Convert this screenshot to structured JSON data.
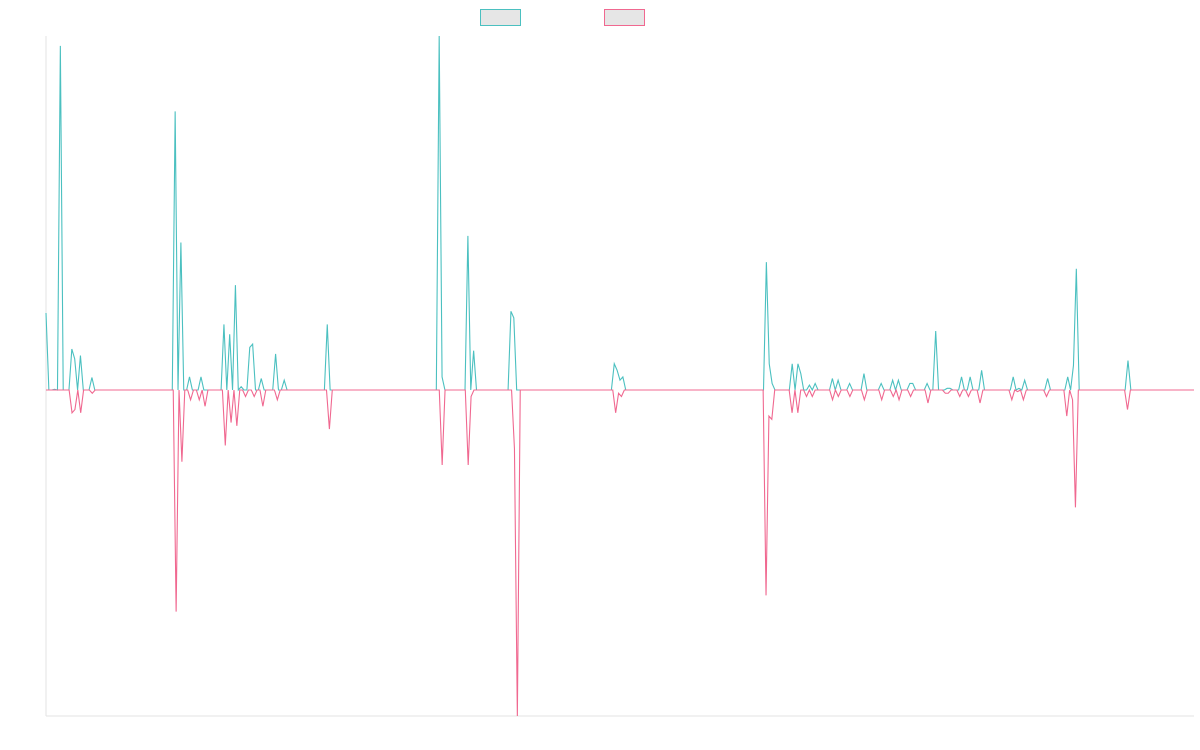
{
  "chart_data": {
    "type": "line",
    "title": "",
    "xlabel": "",
    "ylabel": "",
    "ylim": [
      -1.0,
      1.08
    ],
    "xlim": [
      0,
      200
    ],
    "grid": false,
    "legend_position": "top-center",
    "series": [
      {
        "color": "#4bc0c0",
        "legend_fill": "#e6e6e6",
        "values": [
          0.235,
          0,
          0,
          0.002,
          0,
          1.05,
          0,
          0,
          0,
          0.125,
          0.095,
          0,
          0.105,
          0,
          0,
          0,
          0.038,
          0,
          0,
          0,
          0,
          0,
          0,
          0,
          0,
          0,
          0,
          0,
          0,
          0,
          0,
          0,
          0,
          0,
          0,
          0,
          0,
          0,
          0,
          0,
          0,
          0,
          0,
          0,
          0,
          0.85,
          0,
          0.45,
          0,
          0,
          0.04,
          0,
          0,
          0,
          0.04,
          0,
          0,
          0,
          0,
          0,
          0,
          0,
          0.2,
          0,
          0.17,
          0,
          0.32,
          0,
          0.01,
          0,
          0,
          0.13,
          0.14,
          0,
          0,
          0.035,
          0,
          0,
          0,
          0,
          0.11,
          0,
          0,
          0.03,
          0,
          0,
          0,
          0,
          0,
          0,
          0,
          0,
          0,
          0,
          0,
          0,
          0,
          0,
          0.2,
          0,
          0,
          0,
          0,
          0,
          0,
          0,
          0,
          0,
          0,
          0,
          0,
          0,
          0,
          0,
          0,
          0,
          0,
          0,
          0,
          0,
          0,
          0,
          0,
          0,
          0,
          0,
          0,
          0,
          0,
          0,
          0,
          0,
          0,
          0,
          0,
          0,
          0,
          1.08,
          0.04,
          0,
          0,
          0,
          0,
          0,
          0,
          0,
          0,
          0.47,
          0,
          0.12,
          0,
          0,
          0,
          0,
          0,
          0,
          0,
          0,
          0,
          0,
          0,
          0,
          0.24,
          0.22,
          0,
          0,
          0,
          0,
          0,
          0,
          0,
          0,
          0,
          0,
          0,
          0,
          0,
          0,
          0,
          0,
          0,
          0,
          0,
          0,
          0,
          0,
          0,
          0,
          0,
          0,
          0,
          0,
          0,
          0,
          0,
          0,
          0,
          0,
          0.08,
          0.06,
          0.03,
          0.04,
          0,
          0,
          0,
          0,
          0,
          0,
          0,
          0,
          0,
          0,
          0,
          0,
          0,
          0,
          0,
          0,
          0,
          0,
          0,
          0,
          0,
          0,
          0,
          0,
          0,
          0,
          0,
          0,
          0,
          0,
          0,
          0,
          0,
          0,
          0,
          0,
          0,
          0,
          0,
          0,
          0,
          0,
          0,
          0,
          0,
          0,
          0,
          0,
          0,
          0.39,
          0.08,
          0.02,
          0,
          0,
          0,
          0,
          0,
          0,
          0.08,
          0,
          0.08,
          0.05,
          0,
          0,
          0.015,
          0,
          0.02,
          0,
          0,
          0,
          0,
          0,
          0.035,
          0,
          0.03,
          0,
          0,
          0,
          0.02,
          0,
          0,
          0,
          0,
          0.05,
          0,
          0,
          0,
          0,
          0,
          0.02,
          0,
          0,
          0,
          0.03,
          0,
          0.03,
          0,
          0,
          0,
          0.02,
          0.02,
          0,
          0,
          0,
          0,
          0.02,
          0,
          0,
          0.18,
          0,
          0,
          0,
          0.005,
          0.005,
          0,
          0,
          0,
          0.04,
          0,
          0,
          0.04,
          0,
          0,
          0,
          0.06,
          0,
          0,
          0,
          0,
          0,
          0,
          0,
          0,
          0,
          0,
          0.04,
          0,
          0.005,
          0,
          0.03,
          0,
          0,
          0,
          0,
          0,
          0,
          0,
          0.035,
          0,
          0,
          0,
          0,
          0,
          0,
          0.04,
          0,
          0.075,
          0.37,
          0,
          0,
          0,
          0,
          0,
          0,
          0,
          0,
          0,
          0,
          0,
          0,
          0,
          0,
          0,
          0,
          0,
          0.09,
          0,
          0,
          0,
          0,
          0,
          0,
          0,
          0,
          0,
          0,
          0,
          0,
          0,
          0,
          0,
          0,
          0,
          0,
          0,
          0,
          0,
          0,
          0
        ]
      },
      {
        "color": "#f06890",
        "legend_fill": "#e6e6e6",
        "values": [
          0,
          0,
          0,
          0,
          0,
          0,
          0,
          0,
          0,
          -0.07,
          -0.06,
          0,
          -0.07,
          0,
          0,
          0,
          -0.01,
          0,
          0,
          0,
          0,
          0,
          0,
          0,
          0,
          0,
          0,
          0,
          0,
          0,
          0,
          0,
          0,
          0,
          0,
          0,
          0,
          0,
          0,
          0,
          0,
          0,
          0,
          0,
          0,
          -0.68,
          0,
          -0.22,
          0,
          0,
          -0.03,
          0,
          0,
          -0.03,
          0,
          -0.05,
          0,
          0,
          0,
          0,
          0,
          0,
          -0.17,
          0,
          -0.1,
          0,
          -0.11,
          0,
          0,
          -0.02,
          0,
          0,
          -0.02,
          0,
          0,
          -0.05,
          0,
          0,
          0,
          0,
          -0.03,
          0,
          0,
          0,
          0,
          0,
          0,
          0,
          0,
          0,
          0,
          0,
          0,
          0,
          0,
          0,
          0,
          0,
          -0.12,
          0,
          0,
          0,
          0,
          0,
          0,
          0,
          0,
          0,
          0,
          0,
          0,
          0,
          0,
          0,
          0,
          0,
          0,
          0,
          0,
          0,
          0,
          0,
          0,
          0,
          0,
          0,
          0,
          0,
          0,
          0,
          0,
          0,
          0,
          0,
          0,
          0,
          0,
          -0.23,
          0,
          0,
          0,
          0,
          0,
          0,
          0,
          0,
          -0.23,
          -0.02,
          0,
          0,
          0,
          0,
          0,
          0,
          0,
          0,
          0,
          0,
          0,
          0,
          0,
          0,
          -0.18,
          -1.0,
          0,
          0,
          0,
          0,
          0,
          0,
          0,
          0,
          0,
          0,
          0,
          0,
          0,
          0,
          0,
          0,
          0,
          0,
          0,
          0,
          0,
          0,
          0,
          0,
          0,
          0,
          0,
          0,
          0,
          0,
          0,
          0,
          0,
          -0.07,
          -0.01,
          -0.02,
          0,
          0,
          0,
          0,
          0,
          0,
          0,
          0,
          0,
          0,
          0,
          0,
          0,
          0,
          0,
          0,
          0,
          0,
          0,
          0,
          0,
          0,
          0,
          0,
          0,
          0,
          0,
          0,
          0,
          0,
          0,
          0,
          0,
          0,
          0,
          0,
          0,
          0,
          0,
          0,
          0,
          0,
          0,
          0,
          0,
          0,
          0,
          0,
          0,
          -0.63,
          -0.08,
          -0.09,
          0,
          0,
          0,
          0,
          0,
          0,
          -0.07,
          0,
          -0.07,
          0,
          0,
          -0.02,
          0,
          -0.02,
          0,
          0,
          0,
          0,
          0,
          0,
          -0.03,
          0,
          -0.02,
          0,
          0,
          0,
          -0.02,
          0,
          0,
          0,
          0,
          -0.03,
          0,
          0,
          0,
          0,
          0,
          -0.03,
          0,
          0,
          0,
          -0.02,
          0,
          -0.03,
          0,
          0,
          0,
          -0.02,
          0,
          0,
          0,
          0,
          0,
          -0.04,
          0,
          0,
          0,
          0,
          0,
          -0.01,
          -0.01,
          0,
          0,
          0,
          -0.02,
          0,
          0,
          -0.02,
          0,
          0,
          0,
          -0.04,
          0,
          0,
          0,
          0,
          0,
          0,
          0,
          0,
          0,
          0,
          -0.03,
          0,
          -0.005,
          0,
          -0.03,
          0,
          0,
          0,
          0,
          0,
          0,
          0,
          -0.02,
          0,
          0,
          0,
          0,
          0,
          0,
          -0.08,
          0,
          -0.03,
          -0.36,
          0,
          0,
          0,
          0,
          0,
          0,
          0,
          0,
          0,
          0,
          0,
          0,
          0,
          0,
          0,
          0,
          0,
          -0.06,
          0,
          0,
          0,
          0,
          0,
          0,
          0,
          0,
          0,
          0,
          0,
          0,
          0,
          0,
          0,
          0,
          0,
          0,
          0,
          0,
          0,
          0,
          0
        ]
      }
    ]
  }
}
